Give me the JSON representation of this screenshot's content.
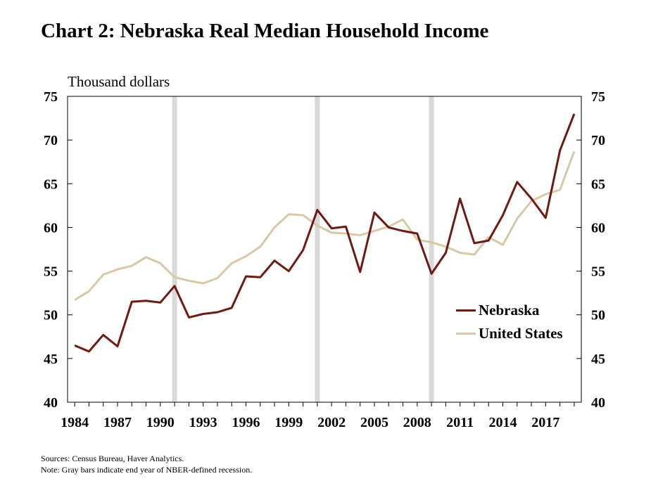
{
  "chart_data": {
    "type": "line",
    "title": "Chart 2: Nebraska Real Median Household Income",
    "ylabel": "Thousand dollars",
    "xlabel": "",
    "ylim": [
      40,
      75
    ],
    "yticks": [
      "40",
      "45",
      "50",
      "55",
      "60",
      "65",
      "70",
      "75"
    ],
    "xtick_labels": [
      "1984",
      "1987",
      "1990",
      "1993",
      "1996",
      "1999",
      "2002",
      "2005",
      "2008",
      "2011",
      "2014",
      "2017"
    ],
    "x": [
      1984,
      1985,
      1986,
      1987,
      1988,
      1989,
      1990,
      1991,
      1992,
      1993,
      1994,
      1995,
      1996,
      1997,
      1998,
      1999,
      2000,
      2001,
      2002,
      2003,
      2004,
      2005,
      2006,
      2007,
      2008,
      2009,
      2010,
      2011,
      2012,
      2013,
      2014,
      2015,
      2016,
      2017,
      2018,
      2019
    ],
    "xlim": [
      1983.5,
      2019.5
    ],
    "recession_years": [
      1991,
      2001,
      2009
    ],
    "series": [
      {
        "name": "Nebraska",
        "color": "#6e1a10",
        "values": [
          46.5,
          45.8,
          47.7,
          46.4,
          51.5,
          51.6,
          51.4,
          53.3,
          49.7,
          50.1,
          50.3,
          50.8,
          54.4,
          54.3,
          56.2,
          55.0,
          57.4,
          62.0,
          59.9,
          60.1,
          54.9,
          61.7,
          60.0,
          59.6,
          59.3,
          54.7,
          57.1,
          63.3,
          58.2,
          58.5,
          61.4,
          65.2,
          63.3,
          61.1,
          68.8,
          73.0
        ]
      },
      {
        "name": "United States",
        "color": "#d9c8a4",
        "values": [
          51.7,
          52.7,
          54.6,
          55.2,
          55.6,
          56.6,
          55.9,
          54.3,
          53.9,
          53.6,
          54.2,
          55.9,
          56.7,
          57.8,
          60.0,
          61.5,
          61.4,
          60.2,
          59.4,
          59.3,
          59.1,
          59.6,
          60.1,
          60.9,
          58.6,
          58.3,
          57.8,
          57.1,
          56.9,
          58.9,
          58.0,
          61.0,
          63.0,
          63.8,
          64.3,
          68.7
        ]
      }
    ],
    "recession_color": "#d9d9d9"
  },
  "footnotes": {
    "sources": "Sources: Census Bureau, Haver Analytics.",
    "note": "Note: Gray bars indicate end year of NBER-defined recession."
  }
}
